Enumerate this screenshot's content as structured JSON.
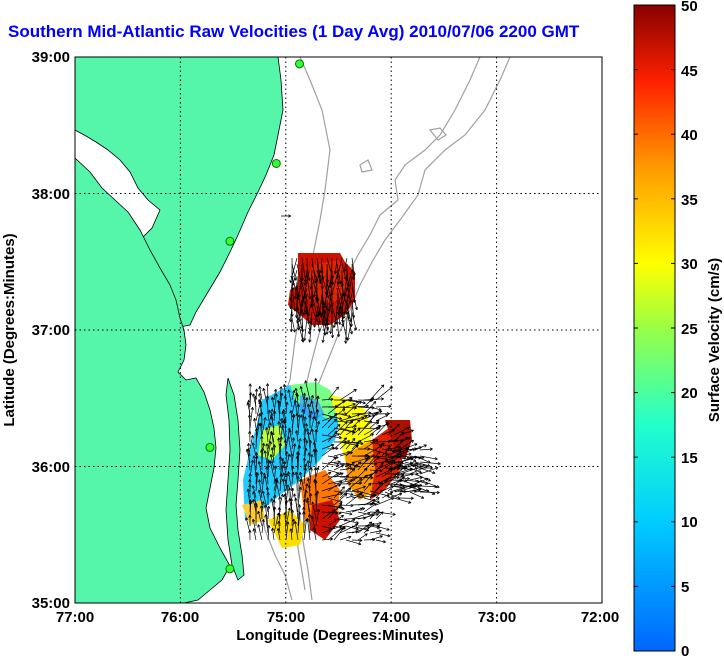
{
  "title": "Southern Mid-Atlantic Raw Velocities (1 Day Avg) 2010/07/06 2200 GMT",
  "x_axis": {
    "label": "Longitude (Degrees:Minutes)",
    "ticks": [
      "77:00",
      "76:00",
      "75:00",
      "74:00",
      "73:00",
      "72:00"
    ]
  },
  "y_axis": {
    "label": "Latitude (Degrees:Minutes)",
    "ticks": [
      "39:00",
      "38:00",
      "37:00",
      "36:00",
      "35:00"
    ]
  },
  "colorbar": {
    "label": "Surface Velocity (cm/s)",
    "ticks": [
      "50",
      "45",
      "40",
      "35",
      "30",
      "25",
      "20",
      "15",
      "10",
      "5",
      "0"
    ],
    "min": 0,
    "max": 50
  },
  "colors": {
    "land": "#55f5aa",
    "title": "#0000ff",
    "bathymetry": "#a0a0a0",
    "grid": "#000000"
  },
  "map_extent": {
    "lon_min": -77,
    "lon_max": -72,
    "lat_min": 35,
    "lat_max": 39
  },
  "stations": [
    {
      "name": "",
      "lon": -74.87,
      "lat": 38.95
    },
    {
      "name": "",
      "lon": -75.09,
      "lat": 38.22
    },
    {
      "name": "",
      "lon": -75.53,
      "lat": 37.65
    },
    {
      "name": "",
      "lon": -75.72,
      "lat": 36.14
    },
    {
      "name": "",
      "lon": -75.53,
      "lat": 35.25
    }
  ]
}
